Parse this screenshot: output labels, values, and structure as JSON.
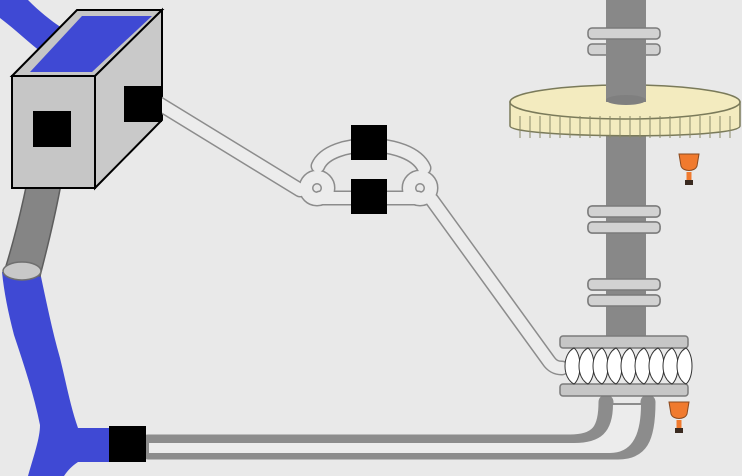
{
  "colors": {
    "background": "#e9e9e9",
    "water": "#3f49d4",
    "tank_front": "#c6c6c6",
    "tank_side": "#c9c9c9",
    "shaft": "#888888",
    "gear": "#f3ebbf",
    "oil_cup": "#f07a2e",
    "port": "#000000",
    "pipe_outline": "#8c8c8c",
    "pipe_fill": "#ececec"
  },
  "components": [
    {
      "id": "water-supply-stream",
      "icon": "water-stream"
    },
    {
      "id": "tank",
      "icon": "cube-tank"
    },
    {
      "id": "drain-hose",
      "icon": "hose"
    },
    {
      "id": "pipe-network",
      "icon": "pipe"
    },
    {
      "id": "vertical-shaft",
      "icon": "shaft"
    },
    {
      "id": "gear-wheel",
      "icon": "bevel-gear"
    },
    {
      "id": "turbine-runner",
      "icon": "turbine"
    },
    {
      "id": "oil-cups",
      "icon": "oil-cup",
      "count": 2
    },
    {
      "id": "connection-ports",
      "icon": "black-square",
      "count": 5
    }
  ]
}
